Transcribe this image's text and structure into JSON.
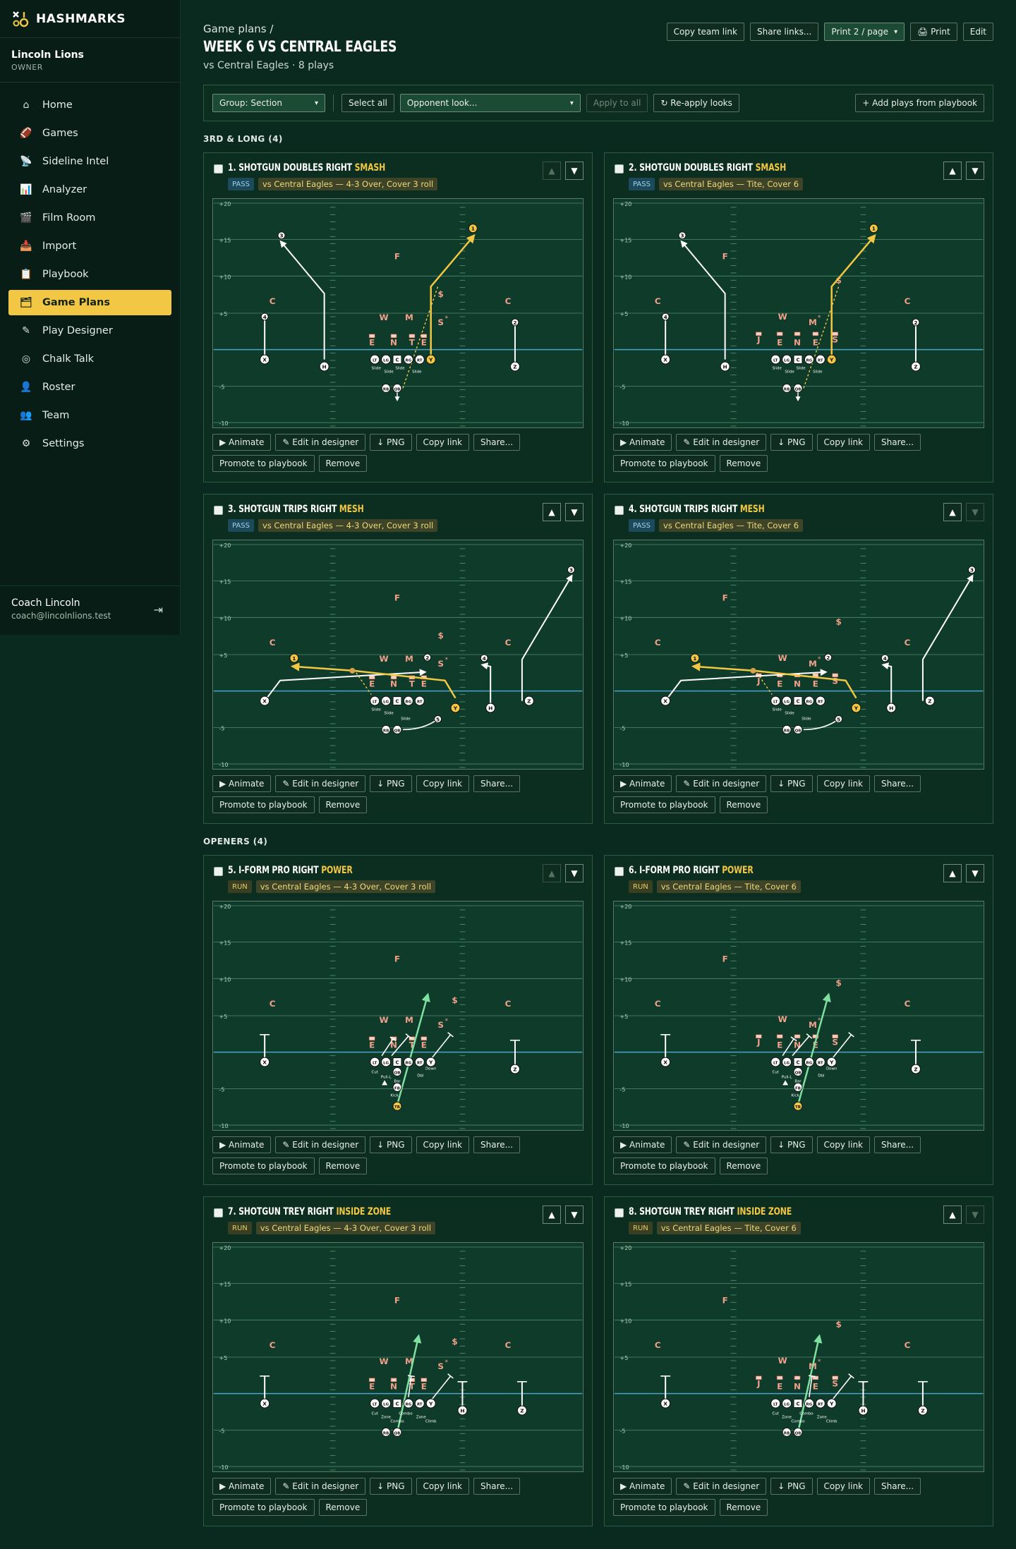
{
  "brand": {
    "name": "HASHMARKS"
  },
  "team": {
    "name": "Lincoln Lions",
    "role": "OWNER"
  },
  "nav": [
    {
      "label": "Home",
      "icon": "⌂",
      "name": "home"
    },
    {
      "label": "Games",
      "icon": "🏈",
      "name": "games"
    },
    {
      "label": "Sideline Intel",
      "icon": "📡",
      "name": "sideline-intel"
    },
    {
      "label": "Analyzer",
      "icon": "📊",
      "name": "analyzer"
    },
    {
      "label": "Film Room",
      "icon": "🎬",
      "name": "film-room"
    },
    {
      "label": "Import",
      "icon": "📥",
      "name": "import"
    },
    {
      "label": "Playbook",
      "icon": "📋",
      "name": "playbook"
    },
    {
      "label": "Game Plans",
      "icon": "🗂",
      "name": "game-plans",
      "active": true
    },
    {
      "label": "Play Designer",
      "icon": "✎",
      "name": "play-designer"
    },
    {
      "label": "Chalk Talk",
      "icon": "◎",
      "name": "chalk-talk"
    },
    {
      "label": "Roster",
      "icon": "👤",
      "name": "roster"
    },
    {
      "label": "Team",
      "icon": "👥",
      "name": "team"
    },
    {
      "label": "Settings",
      "icon": "⚙",
      "name": "settings"
    }
  ],
  "user": {
    "name": "Coach Lincoln",
    "email": "coach@lincolnlions.test"
  },
  "header": {
    "breadcrumb": "Game plans  /",
    "title": "WEEK 6 VS CENTRAL EAGLES",
    "subtitle": "vs Central Eagles · 8 plays",
    "copy_team_link": "Copy team link",
    "share_links": "Share links...",
    "print_select": "Print 2 / page",
    "print": "🖨 Print",
    "edit": "Edit"
  },
  "toolbar": {
    "group_select": "Group: Section",
    "select_all": "Select all",
    "opponent_look": "Opponent look...",
    "apply_to_all": "Apply to all",
    "reapply": "↻ Re-apply looks",
    "add_plays": "+ Add plays from playbook"
  },
  "card_buttons": {
    "animate": "▶ Animate",
    "edit": "✎ Edit in designer",
    "png": "↓ PNG",
    "copy": "Copy link",
    "share": "Share...",
    "promote": "Promote to playbook",
    "remove": "Remove"
  },
  "yard_labels": [
    "+20",
    "+15",
    "+10",
    "+5",
    "-5",
    "-10"
  ],
  "sections": [
    {
      "label": "3RD & LONG (4)",
      "plays": [
        {
          "num": "1.",
          "title": "SHOTGUN DOUBLES RIGHT",
          "concept": "SMASH",
          "type": "PASS",
          "look": "vs Central Eagles — 4-3 Over, Cover 3 roll",
          "up_disabled": true,
          "down_disabled": false,
          "variant": "smash",
          "def": "over"
        },
        {
          "num": "2.",
          "title": "SHOTGUN DOUBLES RIGHT",
          "concept": "SMASH",
          "type": "PASS",
          "look": "vs Central Eagles — Tite, Cover 6",
          "up_disabled": false,
          "down_disabled": false,
          "variant": "smash",
          "def": "tite"
        },
        {
          "num": "3.",
          "title": "SHOTGUN TRIPS RIGHT",
          "concept": "MESH",
          "type": "PASS",
          "look": "vs Central Eagles — 4-3 Over, Cover 3 roll",
          "up_disabled": false,
          "down_disabled": false,
          "variant": "mesh",
          "def": "over"
        },
        {
          "num": "4.",
          "title": "SHOTGUN TRIPS RIGHT",
          "concept": "MESH",
          "type": "PASS",
          "look": "vs Central Eagles — Tite, Cover 6",
          "up_disabled": false,
          "down_disabled": true,
          "variant": "mesh",
          "def": "tite"
        }
      ]
    },
    {
      "label": "OPENERS (4)",
      "plays": [
        {
          "num": "5.",
          "title": "I-FORM PRO RIGHT",
          "concept": "POWER",
          "type": "RUN",
          "look": "vs Central Eagles — 4-3 Over, Cover 3 roll",
          "up_disabled": true,
          "down_disabled": false,
          "variant": "power",
          "def": "over"
        },
        {
          "num": "6.",
          "title": "I-FORM PRO RIGHT",
          "concept": "POWER",
          "type": "RUN",
          "look": "vs Central Eagles — Tite, Cover 6",
          "up_disabled": false,
          "down_disabled": false,
          "variant": "power",
          "def": "tite"
        },
        {
          "num": "7.",
          "title": "SHOTGUN TREY RIGHT",
          "concept": "INSIDE ZONE",
          "type": "RUN",
          "look": "vs Central Eagles — 4-3 Over, Cover 3 roll",
          "up_disabled": false,
          "down_disabled": false,
          "variant": "zone",
          "def": "over"
        },
        {
          "num": "8.",
          "title": "SHOTGUN TREY RIGHT",
          "concept": "INSIDE ZONE",
          "type": "RUN",
          "look": "vs Central Eagles — Tite, Cover 6",
          "up_disabled": false,
          "down_disabled": true,
          "variant": "zone",
          "def": "tite"
        }
      ]
    }
  ],
  "colors": {
    "accent": "#f2c744",
    "field": "#0f3b2b",
    "los": "#4aa3c8",
    "run": "#7fe0a0",
    "defense": "#f2a08a"
  }
}
